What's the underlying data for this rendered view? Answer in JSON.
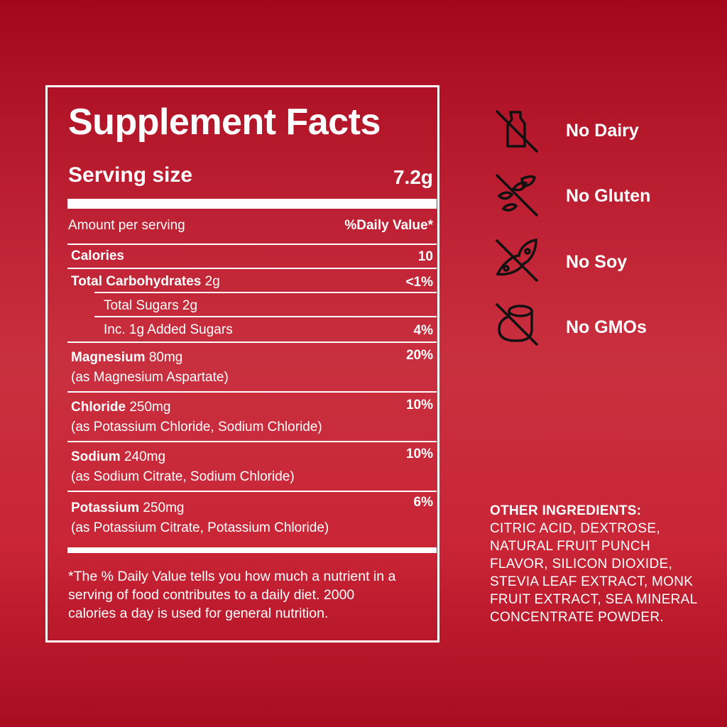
{
  "facts": {
    "title": "Supplement Facts",
    "serving_label": "Serving size",
    "serving_value": "7.2g",
    "amount_header": "Amount per serving",
    "dv_header": "%Daily Value*",
    "rows": [
      {
        "name": "Calories",
        "amount": "",
        "dv": "10"
      },
      {
        "name": "Total Carbohydrates",
        "amount": "2g",
        "dv": "<1%"
      },
      {
        "name": "Total Sugars 2g",
        "amount": "",
        "dv": ""
      },
      {
        "name": "Inc. 1g Added Sugars",
        "amount": "",
        "dv": "4%"
      },
      {
        "name": "Magnesium",
        "amount": "80mg",
        "source": "(as Magnesium Aspartate)",
        "dv": "20%"
      },
      {
        "name": "Chloride",
        "amount": "250mg",
        "source": "(as Potassium Chloride, Sodium Chloride)",
        "dv": "10%"
      },
      {
        "name": "Sodium",
        "amount": "240mg",
        "source": "(as Sodium Citrate, Sodium Chloride)",
        "dv": "10%"
      },
      {
        "name": "Potassium",
        "amount": "250mg",
        "source": "(as Potassium Citrate, Potassium Chloride)",
        "dv": "6%"
      }
    ],
    "footnote": [
      "*The % Daily Value tells you how much a nutrient in a",
      "serving of food contributes to a daily diet. 2000",
      "calories a day is used for general nutrition."
    ]
  },
  "claims": [
    {
      "label": "No Dairy",
      "icon": "no-dairy-icon"
    },
    {
      "label": "No Gluten",
      "icon": "no-gluten-icon"
    },
    {
      "label": "No Soy",
      "icon": "no-soy-icon"
    },
    {
      "label": "No GMOs",
      "icon": "no-gmo-icon"
    }
  ],
  "ingredients": {
    "heading": "OTHER INGREDIENTS:",
    "lines": [
      "CITRIC ACID, DEXTROSE,",
      "NATURAL FRUIT PUNCH",
      "FLAVOR, SILICON DIOXIDE,",
      "STEVIA LEAF EXTRACT, MONK",
      "FRUIT EXTRACT, SEA MINERAL",
      "CONCENTRATE POWDER."
    ]
  },
  "colors": {
    "background": "#c0263a",
    "text": "#ffffff",
    "icon": "#111111"
  }
}
